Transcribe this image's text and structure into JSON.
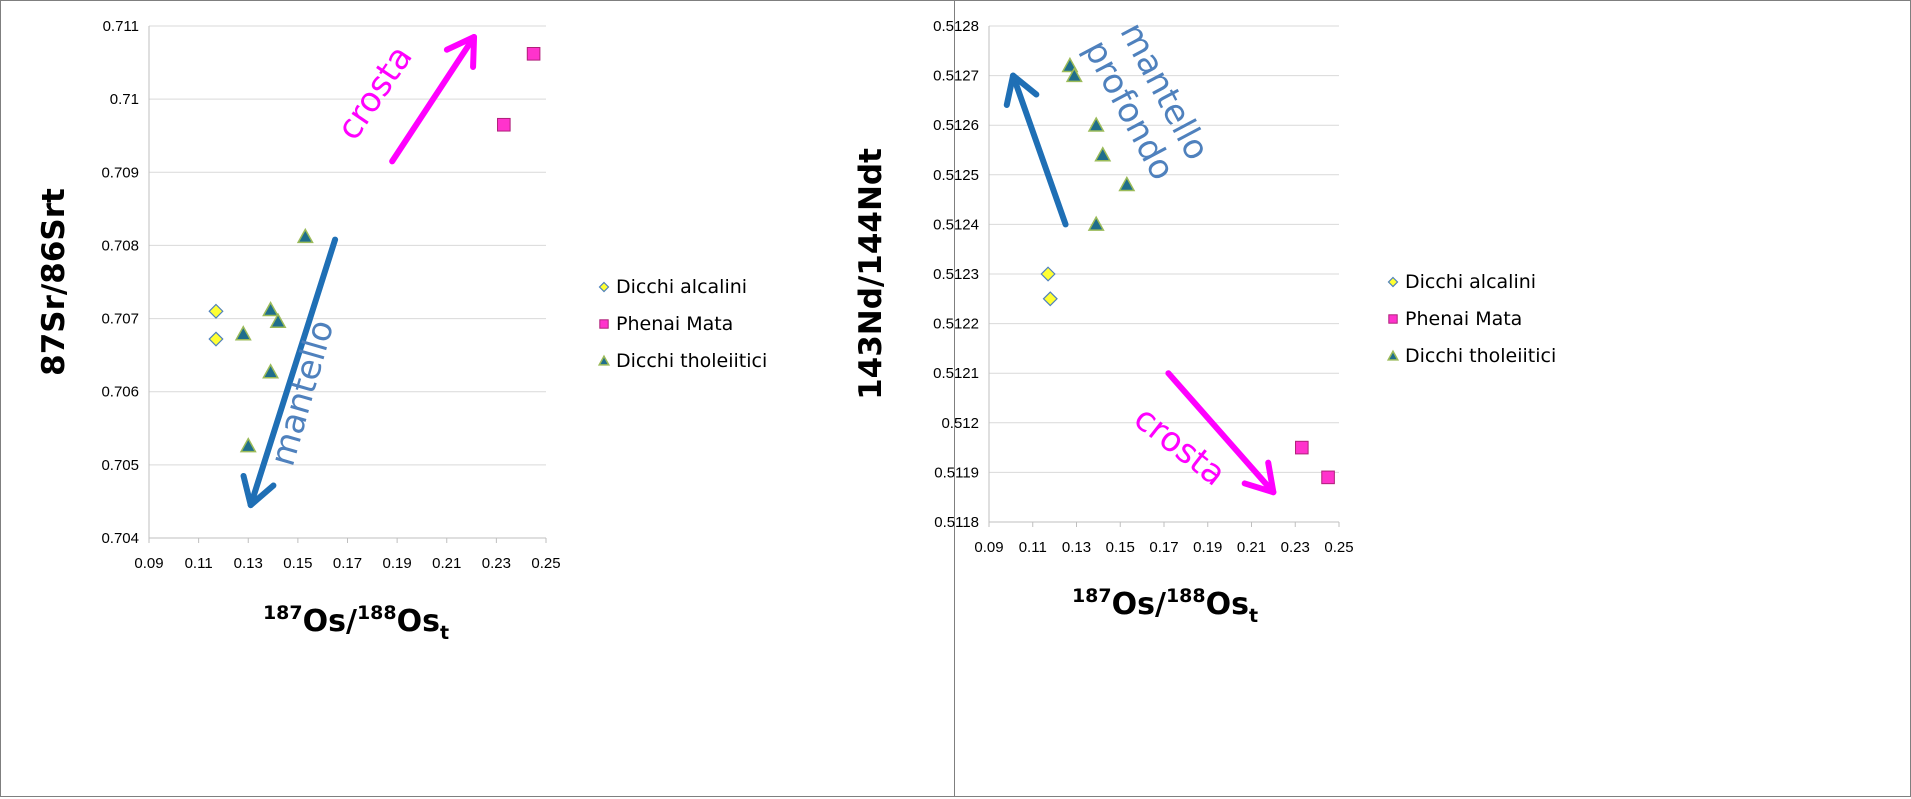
{
  "colors": {
    "grid": "#d9d9d9",
    "axis": "#bfbfbf",
    "diamond_fill": "#ffff33",
    "diamond_stroke": "#4f81bd",
    "square_fill": "#ff33cc",
    "triangle_fill": "#1f6e8c",
    "triangle_stroke": "#9bbb59",
    "crust": "#ff00ff",
    "mantle": "#1f6fb5",
    "mantle_text": "#4f81bd"
  },
  "chart_data": [
    {
      "type": "scatter",
      "title": "",
      "xlabel": {
        "prefix_sup": "187",
        "part1": "Os/",
        "mid_sup": "188",
        "part2": "Os",
        "sub": "t"
      },
      "ylabel": "87Sr/86Srt",
      "xlim": [
        0.09,
        0.25
      ],
      "ylim": [
        0.704,
        0.711
      ],
      "x_ticks": [
        "0.09",
        "0.11",
        "0.13",
        "0.15",
        "0.17",
        "0.19",
        "0.21",
        "0.23",
        "0.25"
      ],
      "y_ticks": [
        "0.704",
        "0.705",
        "0.706",
        "0.707",
        "0.708",
        "0.709",
        "0.71",
        "0.711"
      ],
      "grid": "horizontal",
      "legend": "right",
      "series": [
        {
          "name": "Dicchi alcalini",
          "marker": "diamond",
          "points": [
            [
              0.117,
              0.7071
            ],
            [
              0.117,
              0.70672
            ]
          ]
        },
        {
          "name": "Phenai Mata",
          "marker": "square",
          "points": [
            [
              0.233,
              0.70965
            ],
            [
              0.245,
              0.71062
            ]
          ]
        },
        {
          "name": "Dicchi tholeiitici",
          "marker": "triangle",
          "points": [
            [
              0.153,
              0.70812
            ],
            [
              0.139,
              0.70712
            ],
            [
              0.142,
              0.70696
            ],
            [
              0.128,
              0.70679
            ],
            [
              0.139,
              0.70627
            ],
            [
              0.13,
              0.70526
            ]
          ]
        }
      ],
      "annotations": [
        {
          "text": "crosta",
          "color": "crust",
          "from": [
            0.188,
            0.70915
          ],
          "to": [
            0.221,
            0.71085
          ]
        },
        {
          "text": "mantello",
          "color": "mantle",
          "from": [
            0.165,
            0.70808
          ],
          "to": [
            0.131,
            0.70445
          ]
        }
      ]
    },
    {
      "type": "scatter",
      "title": "",
      "xlabel": {
        "prefix_sup": "187",
        "part1": "Os/",
        "mid_sup": "188",
        "part2": "Os",
        "sub": "t"
      },
      "ylabel": "143Nd/144Ndt",
      "xlim": [
        0.09,
        0.25
      ],
      "ylim": [
        0.5118,
        0.5128
      ],
      "x_ticks": [
        "0.09",
        "0.11",
        "0.13",
        "0.15",
        "0.17",
        "0.19",
        "0.21",
        "0.23",
        "0.25"
      ],
      "y_ticks": [
        "0.5118",
        "0.5119",
        "0.512",
        "0.5121",
        "0.5122",
        "0.5123",
        "0.5124",
        "0.5125",
        "0.5126",
        "0.5127",
        "0.5128"
      ],
      "grid": "horizontal",
      "legend": "right",
      "series": [
        {
          "name": "Dicchi alcalini",
          "marker": "diamond",
          "points": [
            [
              0.117,
              0.5123
            ],
            [
              0.118,
              0.51225
            ]
          ]
        },
        {
          "name": "Phenai Mata",
          "marker": "square",
          "points": [
            [
              0.233,
              0.51195
            ],
            [
              0.245,
              0.51189
            ]
          ]
        },
        {
          "name": "Dicchi tholeiitici",
          "marker": "triangle",
          "points": [
            [
              0.127,
              0.51272
            ],
            [
              0.129,
              0.5127
            ],
            [
              0.139,
              0.5126
            ],
            [
              0.142,
              0.51254
            ],
            [
              0.153,
              0.51248
            ],
            [
              0.139,
              0.5124
            ]
          ]
        }
      ],
      "annotations": [
        {
          "text": "mantello profondo",
          "color": "mantle",
          "from": [
            0.125,
            0.5124
          ],
          "to": [
            0.101,
            0.5127
          ]
        },
        {
          "text": "crosta",
          "color": "crust",
          "from": [
            0.172,
            0.5121
          ],
          "to": [
            0.22,
            0.51186
          ]
        }
      ]
    }
  ]
}
